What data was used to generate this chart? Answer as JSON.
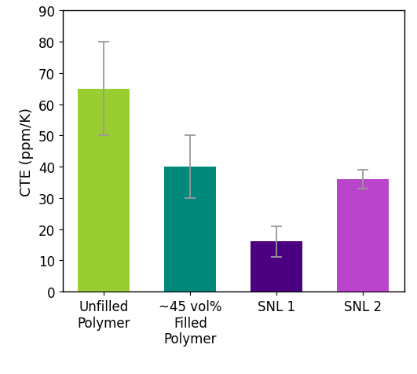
{
  "categories": [
    "Unfilled\nPolymer",
    "~45 vol%\nFilled\nPolymer",
    "SNL 1",
    "SNL 2"
  ],
  "values": [
    65,
    40,
    16,
    36
  ],
  "errors_up": [
    15,
    10,
    5,
    3
  ],
  "errors_down": [
    15,
    10,
    5,
    3
  ],
  "bar_colors": [
    "#9ACD32",
    "#00897B",
    "#4B0082",
    "#BB44CC"
  ],
  "ylabel": "CTE (ppm/K)",
  "ylim": [
    0,
    90
  ],
  "yticks": [
    0,
    10,
    20,
    30,
    40,
    50,
    60,
    70,
    80,
    90
  ],
  "error_color": "#999999",
  "bar_width": 0.6,
  "background_color": "#ffffff",
  "label_fontsize": 13,
  "tick_fontsize": 12,
  "figsize": [
    5.31,
    4.77
  ],
  "dpi": 100
}
